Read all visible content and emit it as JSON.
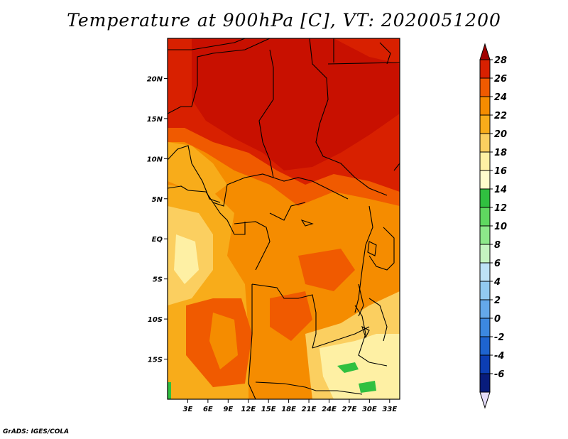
{
  "title": "Temperature at 900hPa [C], VT: 2020051200",
  "credit": "GrADS: IGES/COLA",
  "map": {
    "lon_range": [
      0,
      34.5
    ],
    "lat_range": [
      -20,
      25
    ],
    "lat_ticks": [
      {
        "value": 20,
        "label": "20N"
      },
      {
        "value": 15,
        "label": "15N"
      },
      {
        "value": 10,
        "label": "10N"
      },
      {
        "value": 5,
        "label": "5N"
      },
      {
        "value": 0,
        "label": "EQ"
      },
      {
        "value": -5,
        "label": "5S"
      },
      {
        "value": -10,
        "label": "10S"
      },
      {
        "value": -15,
        "label": "15S"
      }
    ],
    "lon_ticks": [
      {
        "value": 3,
        "label": "3E"
      },
      {
        "value": 6,
        "label": "6E"
      },
      {
        "value": 9,
        "label": "9E"
      },
      {
        "value": 12,
        "label": "12E"
      },
      {
        "value": 15,
        "label": "15E"
      },
      {
        "value": 18,
        "label": "18E"
      },
      {
        "value": 21,
        "label": "21E"
      },
      {
        "value": 24,
        "label": "24E"
      },
      {
        "value": 27,
        "label": "27E"
      },
      {
        "value": 30,
        "label": "30E"
      },
      {
        "value": 33,
        "label": "33E"
      }
    ]
  },
  "colorbar": {
    "levels": [
      "28",
      "26",
      "24",
      "22",
      "20",
      "18",
      "16",
      "14",
      "12",
      "10",
      "8",
      "6",
      "4",
      "2",
      "0",
      "-2",
      "-4",
      "-6"
    ],
    "colors": [
      "#a00000",
      "#d82000",
      "#f05a00",
      "#f58c00",
      "#f8ac1a",
      "#fbcf60",
      "#fef0a4",
      "#fffccc",
      "#30c040",
      "#5fd860",
      "#8de88a",
      "#c4f4c0",
      "#bde2f6",
      "#92caf0",
      "#64a8ea",
      "#3c88e0",
      "#1e64d0",
      "#0c3eb4",
      "#081c7c",
      "#e4dcf8"
    ]
  }
}
